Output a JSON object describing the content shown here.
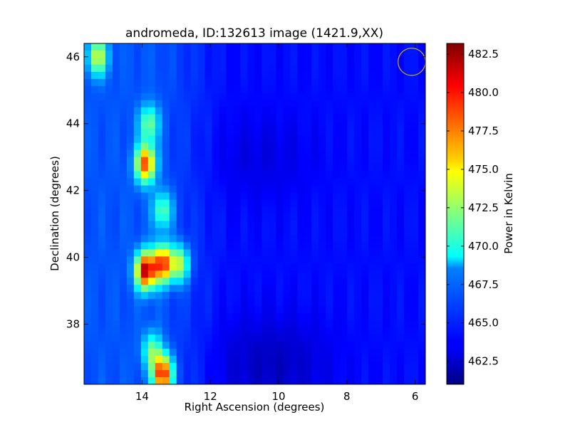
{
  "chart_data": {
    "type": "heatmap",
    "title": "andromeda, ID:132613 image (1421.9,XX)",
    "xlabel": "Right Ascension (degrees)",
    "ylabel": "Declination (degrees)",
    "xlim": [
      15.7,
      5.7
    ],
    "ylim": [
      36.2,
      46.4
    ],
    "xticks": [
      14,
      12,
      10,
      8,
      6
    ],
    "xtick_labels": [
      "14",
      "12",
      "10",
      "8",
      "6"
    ],
    "yticks": [
      38,
      40,
      42,
      44,
      46
    ],
    "ytick_labels": [
      "38",
      "40",
      "42",
      "44",
      "46"
    ],
    "colorbar": {
      "label": "Power in Kelvin",
      "range": [
        461.0,
        483.2
      ],
      "ticks": [
        462.5,
        465.0,
        467.5,
        470.0,
        472.5,
        475.0,
        477.5,
        480.0,
        482.5
      ],
      "tick_labels": [
        "462.5",
        "465.0",
        "467.5",
        "470.0",
        "472.5",
        "475.0",
        "477.5",
        "480.0",
        "482.5"
      ],
      "colormap": "jet"
    },
    "background_level": 464.0,
    "hotspots": [
      {
        "ra": 13.9,
        "dec": 39.6,
        "value": 480.5
      },
      {
        "ra": 13.4,
        "dec": 39.8,
        "value": 478.0
      },
      {
        "ra": 13.4,
        "dec": 36.5,
        "value": 479.0
      },
      {
        "ra": 13.9,
        "dec": 42.8,
        "value": 477.5
      },
      {
        "ra": 12.9,
        "dec": 39.8,
        "value": 472.0
      },
      {
        "ra": 15.3,
        "dec": 46.0,
        "value": 472.5
      },
      {
        "ra": 13.8,
        "dec": 44.0,
        "value": 470.5
      },
      {
        "ra": 13.4,
        "dec": 41.4,
        "value": 470.0
      },
      {
        "ra": 13.7,
        "dec": 37.2,
        "value": 470.0
      }
    ],
    "beam_marker": {
      "ra": 6.1,
      "dec": 45.85,
      "shape": "circle",
      "color": "#c8b400"
    }
  }
}
